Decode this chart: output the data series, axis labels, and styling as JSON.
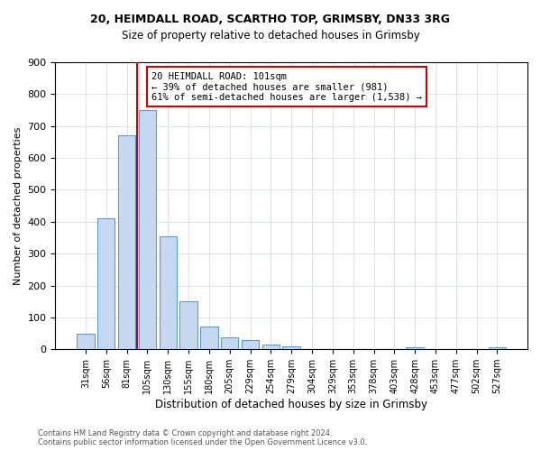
{
  "title_line1": "20, HEIMDALL ROAD, SCARTHO TOP, GRIMSBY, DN33 3RG",
  "title_line2": "Size of property relative to detached houses in Grimsby",
  "xlabel": "Distribution of detached houses by size in Grimsby",
  "ylabel": "Number of detached properties",
  "bar_labels": [
    "31sqm",
    "56sqm",
    "81sqm",
    "105sqm",
    "130sqm",
    "155sqm",
    "180sqm",
    "205sqm",
    "229sqm",
    "254sqm",
    "279sqm",
    "304sqm",
    "329sqm",
    "353sqm",
    "378sqm",
    "403sqm",
    "428sqm",
    "453sqm",
    "477sqm",
    "502sqm",
    "527sqm"
  ],
  "bar_values": [
    50,
    410,
    670,
    750,
    355,
    150,
    70,
    37,
    30,
    15,
    10,
    2,
    0,
    0,
    0,
    0,
    5,
    0,
    0,
    0,
    5
  ],
  "bar_color": "#c5d8f0",
  "bar_edge_color": "#5b9bd5",
  "vline_x": 2.5,
  "annotation_text_line1": "20 HEIMDALL ROAD: 101sqm",
  "annotation_text_line2": "← 39% of detached houses are smaller (981)",
  "annotation_text_line3": "61% of semi-detached houses are larger (1,538) →",
  "vline_color": "#cc0000",
  "ylim": [
    0,
    900
  ],
  "yticks": [
    0,
    100,
    200,
    300,
    400,
    500,
    600,
    700,
    800,
    900
  ],
  "footer_line1": "Contains HM Land Registry data © Crown copyright and database right 2024.",
  "footer_line2": "Contains public sector information licensed under the Open Government Licence v3.0.",
  "bg_color": "#ffffff",
  "grid_color": "#c8d8e8"
}
